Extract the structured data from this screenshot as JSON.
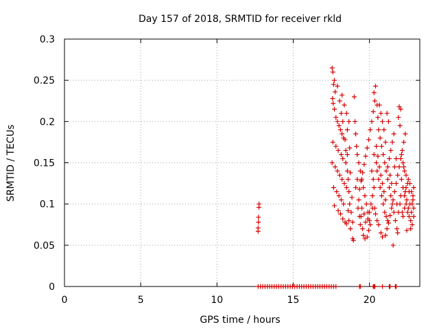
{
  "chart_data": {
    "type": "scatter",
    "title": "Day 157 of 2018, SRMTID for receiver rkld",
    "xlabel": "GPS time / hours",
    "ylabel": "SRMTID / TECUs",
    "xlim": [
      0,
      23.3
    ],
    "ylim": [
      0,
      0.3
    ],
    "xticks": [
      0,
      5,
      10,
      15,
      20
    ],
    "xtick_labels": [
      "0",
      "5",
      "10",
      "15",
      "20"
    ],
    "yticks": [
      0,
      0.05,
      0.1,
      0.15,
      0.2,
      0.25,
      0.3
    ],
    "ytick_labels": [
      "0",
      "0.05",
      "0.1",
      "0.15",
      "0.2",
      "0.25",
      "0.3"
    ],
    "grid": true,
    "marker": "+",
    "color": "#d40000",
    "series": [
      {
        "points": [
          [
            12.7,
            0.067
          ],
          [
            12.7,
            0.071
          ],
          [
            12.72,
            0.078
          ],
          [
            12.72,
            0.084
          ],
          [
            12.75,
            0.096
          ],
          [
            12.76,
            0.1
          ],
          [
            17.55,
            0.265
          ],
          [
            17.6,
            0.26
          ],
          [
            17.65,
            0.245
          ],
          [
            17.7,
            0.25
          ],
          [
            17.75,
            0.236
          ],
          [
            17.58,
            0.228
          ],
          [
            17.62,
            0.222
          ],
          [
            17.7,
            0.215
          ],
          [
            17.8,
            0.205
          ],
          [
            17.9,
            0.2
          ],
          [
            18.0,
            0.195
          ],
          [
            18.1,
            0.19
          ],
          [
            18.2,
            0.185
          ],
          [
            18.3,
            0.18
          ],
          [
            17.6,
            0.175
          ],
          [
            17.8,
            0.17
          ],
          [
            17.95,
            0.165
          ],
          [
            18.15,
            0.16
          ],
          [
            18.25,
            0.155
          ],
          [
            17.55,
            0.15
          ],
          [
            17.75,
            0.145
          ],
          [
            17.9,
            0.14
          ],
          [
            18.05,
            0.135
          ],
          [
            18.2,
            0.13
          ],
          [
            18.35,
            0.125
          ],
          [
            17.65,
            0.12
          ],
          [
            17.85,
            0.115
          ],
          [
            18.0,
            0.11
          ],
          [
            18.15,
            0.105
          ],
          [
            18.3,
            0.1
          ],
          [
            17.7,
            0.098
          ],
          [
            17.95,
            0.092
          ],
          [
            18.1,
            0.088
          ],
          [
            18.25,
            0.082
          ],
          [
            18.4,
            0.078
          ],
          [
            18.5,
            0.076
          ],
          [
            18.65,
            0.08
          ],
          [
            18.75,
            0.07
          ],
          [
            18.9,
            0.058
          ],
          [
            18.95,
            0.056
          ],
          [
            18.6,
            0.092
          ],
          [
            18.7,
            0.1
          ],
          [
            18.85,
            0.108
          ],
          [
            18.5,
            0.12
          ],
          [
            18.6,
            0.13
          ],
          [
            18.75,
            0.138
          ],
          [
            18.45,
            0.15
          ],
          [
            18.55,
            0.16
          ],
          [
            18.7,
            0.168
          ],
          [
            18.4,
            0.178
          ],
          [
            18.55,
            0.19
          ],
          [
            18.65,
            0.2
          ],
          [
            18.5,
            0.21
          ],
          [
            18.35,
            0.22
          ],
          [
            18.2,
            0.232
          ],
          [
            17.9,
            0.243
          ],
          [
            19.0,
            0.23
          ],
          [
            19.05,
            0.2
          ],
          [
            19.1,
            0.185
          ],
          [
            19.15,
            0.17
          ],
          [
            19.2,
            0.16
          ],
          [
            19.3,
            0.15
          ],
          [
            19.4,
            0.14
          ],
          [
            19.5,
            0.13
          ],
          [
            19.6,
            0.12
          ],
          [
            19.7,
            0.11
          ],
          [
            19.8,
            0.1
          ],
          [
            19.9,
            0.09
          ],
          [
            20.0,
            0.08
          ],
          [
            20.05,
            0.075
          ],
          [
            19.55,
            0.07
          ],
          [
            19.6,
            0.062
          ],
          [
            19.7,
            0.058
          ],
          [
            19.85,
            0.06
          ],
          [
            19.95,
            0.068
          ],
          [
            19.45,
            0.085
          ],
          [
            19.5,
            0.095
          ],
          [
            19.65,
            0.088
          ],
          [
            19.75,
            0.078
          ],
          [
            19.9,
            0.082
          ],
          [
            20.0,
            0.09
          ],
          [
            20.1,
            0.1
          ],
          [
            20.2,
            0.11
          ],
          [
            20.3,
            0.12
          ],
          [
            19.3,
            0.105
          ],
          [
            19.35,
            0.118
          ],
          [
            19.45,
            0.128
          ],
          [
            19.55,
            0.138
          ],
          [
            19.65,
            0.148
          ],
          [
            19.75,
            0.158
          ],
          [
            19.85,
            0.168
          ],
          [
            19.95,
            0.178
          ],
          [
            20.05,
            0.19
          ],
          [
            20.15,
            0.2
          ],
          [
            20.25,
            0.212
          ],
          [
            20.35,
            0.225
          ],
          [
            20.4,
            0.243
          ],
          [
            20.3,
            0.235
          ],
          [
            20.5,
            0.22
          ],
          [
            20.55,
            0.205
          ],
          [
            20.6,
            0.19
          ],
          [
            20.7,
            0.18
          ],
          [
            20.8,
            0.17
          ],
          [
            20.9,
            0.16
          ],
          [
            21.0,
            0.15
          ],
          [
            21.1,
            0.14
          ],
          [
            21.2,
            0.13
          ],
          [
            21.3,
            0.12
          ],
          [
            21.4,
            0.11
          ],
          [
            21.5,
            0.1
          ],
          [
            21.6,
            0.09
          ],
          [
            21.7,
            0.08
          ],
          [
            21.8,
            0.07
          ],
          [
            21.85,
            0.065
          ],
          [
            21.55,
            0.05
          ],
          [
            20.45,
            0.15
          ],
          [
            20.5,
            0.14
          ],
          [
            20.6,
            0.13
          ],
          [
            20.7,
            0.12
          ],
          [
            20.8,
            0.11
          ],
          [
            20.9,
            0.1
          ],
          [
            21.0,
            0.09
          ],
          [
            21.1,
            0.085
          ],
          [
            21.2,
            0.08
          ],
          [
            20.35,
            0.095
          ],
          [
            20.4,
            0.088
          ],
          [
            20.5,
            0.08
          ],
          [
            20.6,
            0.075
          ],
          [
            20.75,
            0.065
          ],
          [
            20.85,
            0.06
          ],
          [
            21.05,
            0.062
          ],
          [
            21.15,
            0.07
          ],
          [
            21.25,
            0.077
          ],
          [
            21.35,
            0.086
          ],
          [
            21.45,
            0.095
          ],
          [
            21.55,
            0.105
          ],
          [
            21.65,
            0.115
          ],
          [
            21.75,
            0.125
          ],
          [
            21.85,
            0.135
          ],
          [
            21.95,
            0.145
          ],
          [
            22.05,
            0.155
          ],
          [
            22.15,
            0.165
          ],
          [
            22.25,
            0.175
          ],
          [
            22.35,
            0.185
          ],
          [
            22.0,
            0.195
          ],
          [
            21.9,
            0.205
          ],
          [
            21.95,
            0.218
          ],
          [
            22.05,
            0.215
          ],
          [
            21.6,
            0.185
          ],
          [
            21.5,
            0.175
          ],
          [
            21.4,
            0.165
          ],
          [
            21.3,
            0.155
          ],
          [
            21.2,
            0.145
          ],
          [
            21.05,
            0.175
          ],
          [
            20.95,
            0.19
          ],
          [
            20.85,
            0.2
          ],
          [
            20.75,
            0.21
          ],
          [
            20.65,
            0.22
          ],
          [
            21.15,
            0.21
          ],
          [
            21.25,
            0.2
          ],
          [
            22.1,
            0.13
          ],
          [
            22.2,
            0.12
          ],
          [
            22.3,
            0.11
          ],
          [
            22.4,
            0.1
          ],
          [
            22.5,
            0.09
          ],
          [
            22.6,
            0.085
          ],
          [
            22.7,
            0.08
          ],
          [
            22.75,
            0.09
          ],
          [
            22.8,
            0.1
          ],
          [
            22.85,
            0.11
          ],
          [
            22.9,
            0.12
          ],
          [
            22.6,
            0.115
          ],
          [
            22.5,
            0.125
          ],
          [
            22.4,
            0.135
          ],
          [
            22.3,
            0.14
          ],
          [
            22.2,
            0.15
          ],
          [
            22.1,
            0.16
          ],
          [
            22.65,
            0.1
          ],
          [
            22.55,
            0.095
          ],
          [
            22.45,
            0.105
          ],
          [
            22.35,
            0.115
          ],
          [
            22.8,
            0.075
          ],
          [
            22.7,
            0.07
          ],
          [
            22.45,
            0.068
          ],
          [
            22.9,
            0.085
          ],
          [
            22.25,
            0.145
          ],
          [
            18.05,
            0.225
          ],
          [
            18.15,
            0.21
          ],
          [
            18.25,
            0.2
          ],
          [
            18.45,
            0.165
          ],
          [
            18.55,
            0.14
          ],
          [
            18.65,
            0.115
          ],
          [
            18.8,
            0.09
          ],
          [
            18.9,
            0.078
          ],
          [
            19.1,
            0.12
          ],
          [
            19.2,
            0.13
          ],
          [
            19.25,
            0.095
          ],
          [
            19.35,
            0.085
          ],
          [
            19.4,
            0.075
          ],
          [
            20.2,
            0.095
          ],
          [
            20.25,
            0.13
          ],
          [
            20.15,
            0.14
          ],
          [
            20.3,
            0.16
          ],
          [
            20.45,
            0.17
          ],
          [
            20.55,
            0.158
          ],
          [
            20.65,
            0.145
          ],
          [
            20.75,
            0.135
          ],
          [
            20.85,
            0.125
          ],
          [
            20.95,
            0.115
          ],
          [
            21.05,
            0.105
          ],
          [
            21.35,
            0.135
          ],
          [
            21.45,
            0.125
          ],
          [
            21.65,
            0.145
          ],
          [
            21.75,
            0.155
          ],
          [
            21.8,
            0.1
          ],
          [
            21.9,
            0.09
          ],
          [
            22.0,
            0.1
          ],
          [
            22.05,
            0.11
          ],
          [
            22.15,
            0.09
          ],
          [
            22.2,
            0.085
          ],
          [
            22.3,
            0.095
          ],
          [
            22.4,
            0.12
          ],
          [
            22.55,
            0.13
          ],
          [
            22.65,
            0.125
          ],
          [
            22.75,
            0.115
          ],
          [
            22.85,
            0.105
          ],
          [
            22.9,
            0.095
          ]
        ]
      },
      {
        "points": [
          [
            12.7,
            0
          ],
          [
            12.85,
            0
          ],
          [
            13.0,
            0
          ],
          [
            13.15,
            0
          ],
          [
            13.3,
            0
          ],
          [
            13.45,
            0
          ],
          [
            13.6,
            0
          ],
          [
            13.75,
            0
          ],
          [
            13.9,
            0
          ],
          [
            14.05,
            0
          ],
          [
            14.2,
            0
          ],
          [
            14.35,
            0
          ],
          [
            14.5,
            0
          ],
          [
            14.65,
            0
          ],
          [
            14.8,
            0
          ],
          [
            14.95,
            0
          ],
          [
            15.1,
            0
          ],
          [
            15.25,
            0
          ],
          [
            15.4,
            0
          ],
          [
            15.55,
            0
          ],
          [
            15.7,
            0
          ],
          [
            15.85,
            0
          ],
          [
            16.0,
            0
          ],
          [
            16.15,
            0
          ],
          [
            16.3,
            0
          ],
          [
            16.45,
            0
          ],
          [
            16.6,
            0
          ],
          [
            16.75,
            0
          ],
          [
            16.9,
            0
          ],
          [
            17.05,
            0
          ],
          [
            17.2,
            0
          ],
          [
            17.35,
            0
          ],
          [
            17.5,
            0
          ],
          [
            17.65,
            0
          ],
          [
            17.8,
            0
          ],
          [
            19.35,
            0
          ],
          [
            19.4,
            0
          ],
          [
            20.25,
            0
          ],
          [
            20.3,
            0
          ],
          [
            20.35,
            0
          ],
          [
            20.85,
            0
          ],
          [
            21.3,
            0
          ],
          [
            21.35,
            0
          ],
          [
            21.7,
            0
          ],
          [
            21.75,
            0
          ]
        ]
      }
    ]
  }
}
